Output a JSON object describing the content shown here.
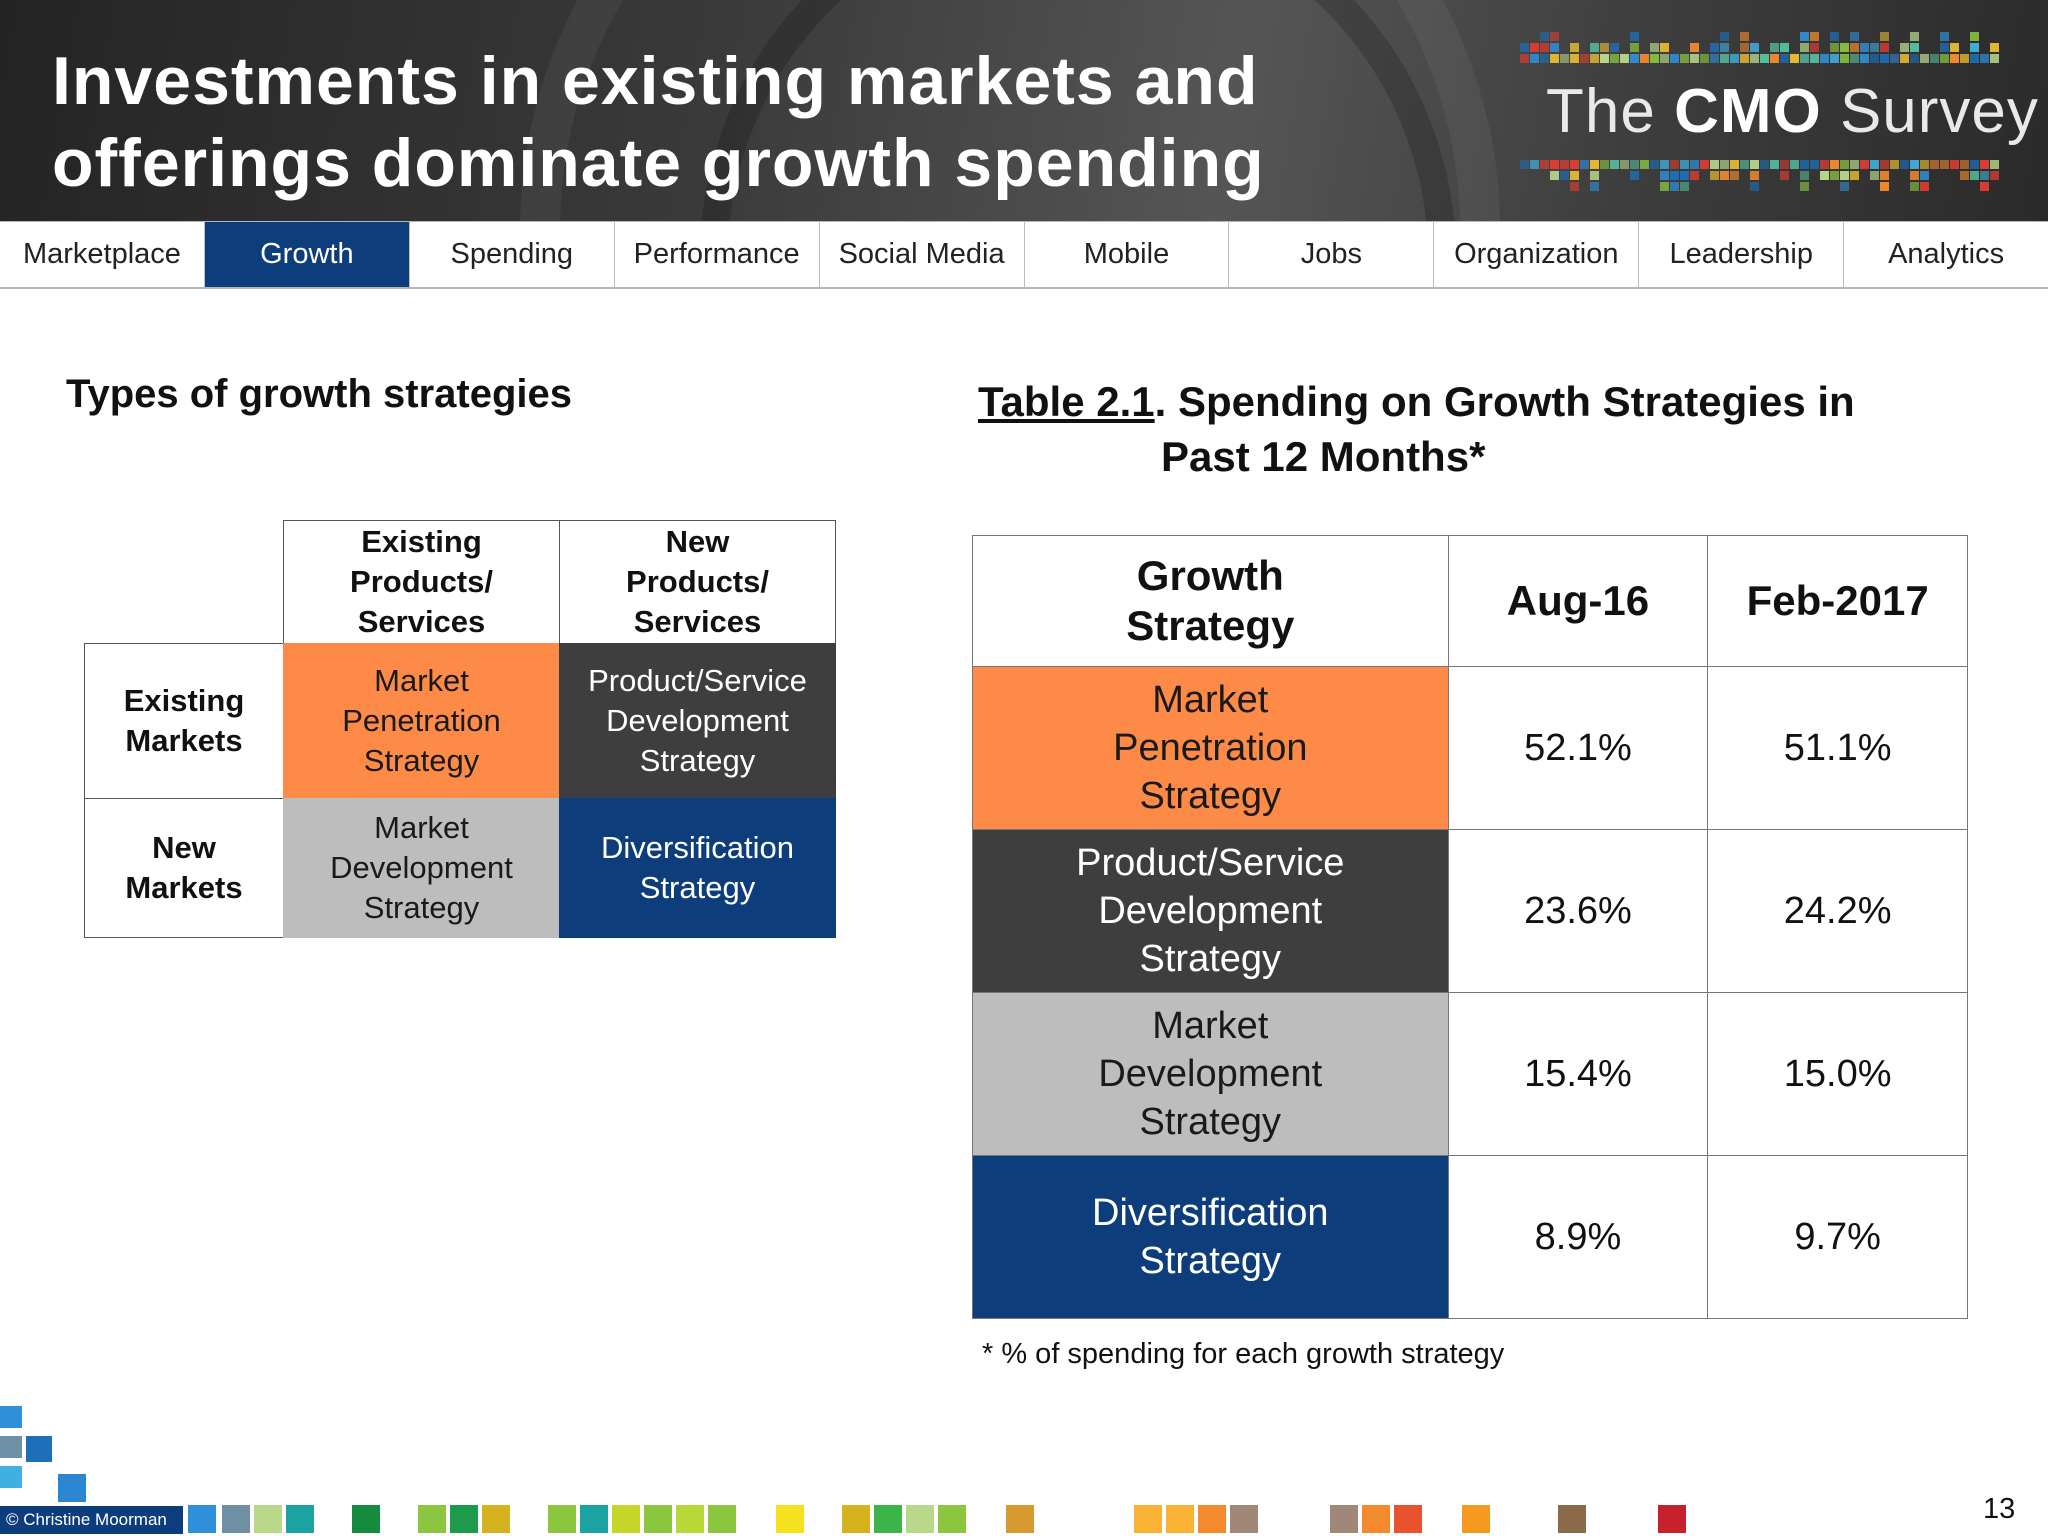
{
  "header": {
    "title_line1": "Investments in existing markets and",
    "title_line2": "offerings dominate growth spending",
    "logo_prefix": "The ",
    "logo_bold": "CMO",
    "logo_suffix": " Survey"
  },
  "nav": {
    "tabs": [
      "Marketplace",
      "Growth",
      "Spending",
      "Performance",
      "Social Media",
      "Mobile",
      "Jobs",
      "Organization",
      "Leadership",
      "Analytics"
    ],
    "active": "Growth"
  },
  "left": {
    "heading": "Types of growth strategies",
    "col1": [
      "Existing",
      "Products/",
      "Services"
    ],
    "col2": [
      "New",
      "Products/",
      "Services"
    ],
    "row1": [
      "Existing",
      "Markets"
    ],
    "row2": [
      "New",
      "Markets"
    ],
    "cells": {
      "market_penetration": [
        "Market",
        "Penetration",
        "Strategy"
      ],
      "product_service": [
        "Product/Service",
        "Development",
        "Strategy"
      ],
      "market_development": [
        "Market",
        "Development",
        "Strategy"
      ],
      "diversification": [
        "Diversification",
        "Strategy"
      ]
    }
  },
  "right": {
    "heading_underlined": "Table 2.1",
    "heading_line1_rest": ". Spending on Growth Strategies in",
    "heading_line2": "Past 12 Months*",
    "table": {
      "headers": {
        "strategy": [
          "Growth",
          "Strategy"
        ],
        "aug16": "Aug-16",
        "feb2017": "Feb-2017"
      },
      "rows": [
        {
          "strategy": [
            "Market",
            "Penetration",
            "Strategy"
          ],
          "aug16": "52.1%",
          "feb2017": "51.1%"
        },
        {
          "strategy": [
            "Product/Service",
            "Development",
            "Strategy"
          ],
          "aug16": "23.6%",
          "feb2017": "24.2%"
        },
        {
          "strategy": [
            "Market",
            "Development",
            "Strategy"
          ],
          "aug16": "15.4%",
          "feb2017": "15.0%"
        },
        {
          "strategy": [
            "Diversification",
            "Strategy"
          ],
          "aug16": "8.9%",
          "feb2017": "9.7%"
        }
      ]
    },
    "footnote": "* % of spending for each growth strategy"
  },
  "footer": {
    "copyright": "© Christine Moorman",
    "page_number": "13"
  },
  "colors": {
    "brand_blue": "#0e3d7c",
    "orange": "#fd8a46",
    "dark_grey": "#3e3e3e",
    "light_grey": "#bdbdbd"
  }
}
